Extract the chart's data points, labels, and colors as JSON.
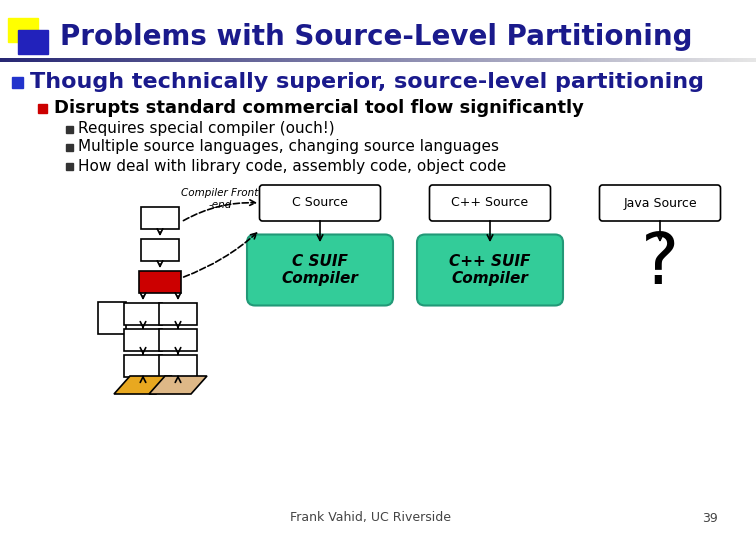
{
  "title": "Problems with Source-Level Partitioning",
  "title_color": "#1a1a8c",
  "title_fontsize": 20,
  "bg_color": "#ffffff",
  "bullet1_text": "Though technically superior, source-level partitioning",
  "bullet1_color": "#1a1a8c",
  "bullet1_marker_color": "#2233cc",
  "bullet2_text": "Disrupts standard commercial tool flow significantly",
  "bullet2_color": "#000000",
  "bullet2_marker_color": "#cc0000",
  "sub_bullets": [
    "Requires special compiler (ouch!)",
    "Multiple source languages, changing source languages",
    "How deal with library code, assembly code, object code"
  ],
  "sub_bullet_color": "#000000",
  "sub_bullet_marker_color": "#333333",
  "footer_text": "Frank Vahid, UC Riverside",
  "footer_page": "39",
  "footer_color": "#444444",
  "logo_yellow": "#ffff00",
  "logo_blue": "#2222bb",
  "box_source_labels": [
    "C Source",
    "C++ Source",
    "Java Source"
  ],
  "compiler_box_color": "#33cc99",
  "compiler_box_edge": "#229977",
  "compiler_labels": [
    "C SUIF\nCompiler",
    "C++ SUIF\nCompiler"
  ],
  "question_mark_text": "?",
  "compiler_front_end_label": "Compiler Front\n-end",
  "flow_red_box_color": "#cc0000",
  "flow_gold_color": "#e8a820",
  "flow_tan_color": "#deb887"
}
